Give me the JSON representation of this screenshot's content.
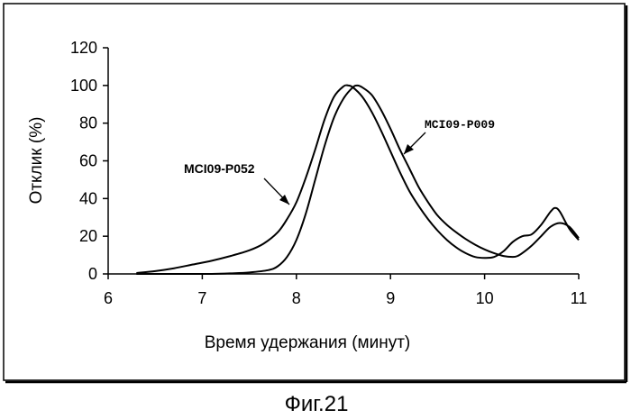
{
  "chart_data": {
    "type": "line",
    "title": "",
    "xlabel": "Время удержания (минут)",
    "ylabel": "Отклик (%)",
    "xlim": [
      6,
      11
    ],
    "ylim": [
      0,
      120
    ],
    "xticks": [
      6,
      7,
      8,
      9,
      10,
      11
    ],
    "yticks": [
      0,
      20,
      40,
      60,
      80,
      100,
      120
    ],
    "grid": false,
    "series": [
      {
        "name": "MCI09-P052",
        "x": [
          6.3,
          6.5,
          6.7,
          6.9,
          7.1,
          7.3,
          7.5,
          7.65,
          7.8,
          7.9,
          8.0,
          8.1,
          8.2,
          8.3,
          8.4,
          8.5,
          8.55,
          8.6,
          8.7,
          8.8,
          8.9,
          9.0,
          9.1,
          9.2,
          9.3,
          9.4,
          9.5,
          9.6,
          9.7,
          9.8,
          9.9,
          10.0,
          10.1,
          10.2,
          10.3,
          10.4,
          10.5,
          10.6,
          10.7,
          10.75,
          10.8,
          10.9,
          11.0
        ],
        "y": [
          0.5,
          1.5,
          3,
          5,
          7,
          9.5,
          12.5,
          16,
          22,
          29,
          38,
          51,
          66,
          82,
          94,
          99.5,
          100,
          99,
          94,
          86,
          76,
          65,
          54,
          44,
          36,
          29,
          23,
          18,
          14,
          11,
          9,
          8.5,
          9,
          12,
          17,
          20,
          21,
          26,
          33,
          35,
          33,
          24,
          18
        ]
      },
      {
        "name": "MCI09-P009",
        "x": [
          6.3,
          6.5,
          6.7,
          6.9,
          7.1,
          7.3,
          7.5,
          7.7,
          7.8,
          7.9,
          8.0,
          8.1,
          8.2,
          8.3,
          8.4,
          8.5,
          8.6,
          8.65,
          8.7,
          8.8,
          8.9,
          9.0,
          9.1,
          9.2,
          9.3,
          9.4,
          9.5,
          9.6,
          9.7,
          9.8,
          9.9,
          10.0,
          10.1,
          10.2,
          10.3,
          10.35,
          10.4,
          10.5,
          10.6,
          10.7,
          10.8,
          10.9,
          11.0
        ],
        "y": [
          0,
          0,
          0,
          0,
          0,
          0.3,
          0.8,
          2,
          4,
          9,
          18,
          32,
          50,
          68,
          83,
          93,
          99,
          100,
          99,
          95,
          87,
          77,
          66,
          56,
          46,
          38,
          31,
          26,
          22,
          18.5,
          15.5,
          13,
          11,
          9.5,
          9,
          9.5,
          11,
          15,
          20,
          25,
          27,
          25,
          19
        ]
      }
    ],
    "annotations": [
      {
        "text": "MCI09-P052",
        "points_to_series": "MCI09-P052"
      },
      {
        "text": "MCI09-P009",
        "points_to_series": "MCI09-P009"
      }
    ],
    "caption": "Фиг.21"
  }
}
